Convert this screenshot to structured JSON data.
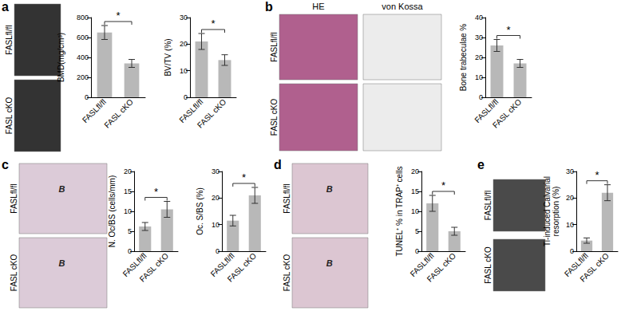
{
  "chart_data": [
    {
      "type": "bar",
      "ylabel": "BMD(mg/cm³)",
      "categories": [
        "FASLfl/fl",
        "FASL cKO"
      ],
      "values": [
        650,
        340
      ],
      "errors": [
        70,
        40
      ],
      "color": "#b8b8b8",
      "ylim": [
        0,
        800
      ],
      "yticks": [
        0,
        200,
        400,
        600,
        800
      ],
      "grid": false,
      "annotation": "*"
    },
    {
      "type": "bar",
      "ylabel": "BV/TV (%)",
      "categories": [
        "FASLfl/fl",
        "FASL cKO"
      ],
      "values": [
        21,
        14
      ],
      "errors": [
        3,
        2
      ],
      "color": "#b8b8b8",
      "ylim": [
        0,
        30
      ],
      "yticks": [
        0,
        10,
        20,
        30
      ],
      "grid": false,
      "annotation": "*"
    },
    {
      "type": "bar",
      "ylabel": "Bone trabeculae %",
      "categories": [
        "FASLfl/fl",
        "FASL cKO"
      ],
      "values": [
        26,
        17
      ],
      "errors": [
        3,
        2
      ],
      "color": "#b8b8b8",
      "ylim": [
        0,
        40
      ],
      "yticks": [
        0,
        10,
        20,
        30,
        40
      ],
      "grid": false,
      "annotation": "*"
    },
    {
      "type": "bar",
      "ylabel": "N. Oc/BS (cells/mm)",
      "categories": [
        "FASLfl/fl",
        "FASL cKO"
      ],
      "values": [
        6.2,
        10.5
      ],
      "errors": [
        1,
        2
      ],
      "color": "#b8b8b8",
      "ylim": [
        0,
        20
      ],
      "yticks": [
        0,
        5,
        10,
        15,
        20
      ],
      "grid": false,
      "annotation": "*"
    },
    {
      "type": "bar",
      "ylabel": "Oc. S/BS (%)",
      "categories": [
        "FASLfl/fl",
        "FASL cKO"
      ],
      "values": [
        11.5,
        21
      ],
      "errors": [
        2,
        3
      ],
      "color": "#b8b8b8",
      "ylim": [
        0,
        30
      ],
      "yticks": [
        0,
        10,
        20,
        30
      ],
      "grid": false,
      "annotation": "*"
    },
    {
      "type": "bar",
      "ylabel": "TUNEL⁺ % in TRAP⁺ cells",
      "categories": [
        "FASLfl/fl",
        "FASL cKO"
      ],
      "values": [
        12,
        5
      ],
      "errors": [
        2,
        1
      ],
      "color": "#b8b8b8",
      "ylim": [
        0,
        20
      ],
      "yticks": [
        0,
        5,
        10,
        15,
        20
      ],
      "grid": false,
      "annotation": "*"
    },
    {
      "type": "bar",
      "ylabel": "Ti-induced Calvarial\nresorption (%)",
      "categories": [
        "FASLfl/fl",
        "FASL cKO"
      ],
      "values": [
        4,
        22
      ],
      "errors": [
        1,
        3
      ],
      "color": "#b8b8b8",
      "ylim": [
        0,
        30
      ],
      "yticks": [
        0,
        10,
        20,
        30
      ],
      "grid": false,
      "annotation": "*"
    }
  ],
  "figure": {
    "panels": [
      {
        "label": "a",
        "row_labels": [
          "FASLfl/fl",
          "FASL cKO"
        ]
      },
      {
        "label": "b",
        "row_labels": [
          "FASLfl/fl",
          "FASL cKO"
        ],
        "column_labels": [
          "HE",
          "von Kossa"
        ]
      },
      {
        "label": "c",
        "row_labels": [
          "FASLfl/fl",
          "FASL cKO"
        ],
        "image_mark": "B"
      },
      {
        "label": "d",
        "row_labels": [
          "FASLfl/fl",
          "FASL cKO"
        ],
        "image_mark": "B"
      },
      {
        "label": "e",
        "row_labels": [
          "FASLfl/fl",
          "FASL cKO"
        ]
      }
    ]
  }
}
